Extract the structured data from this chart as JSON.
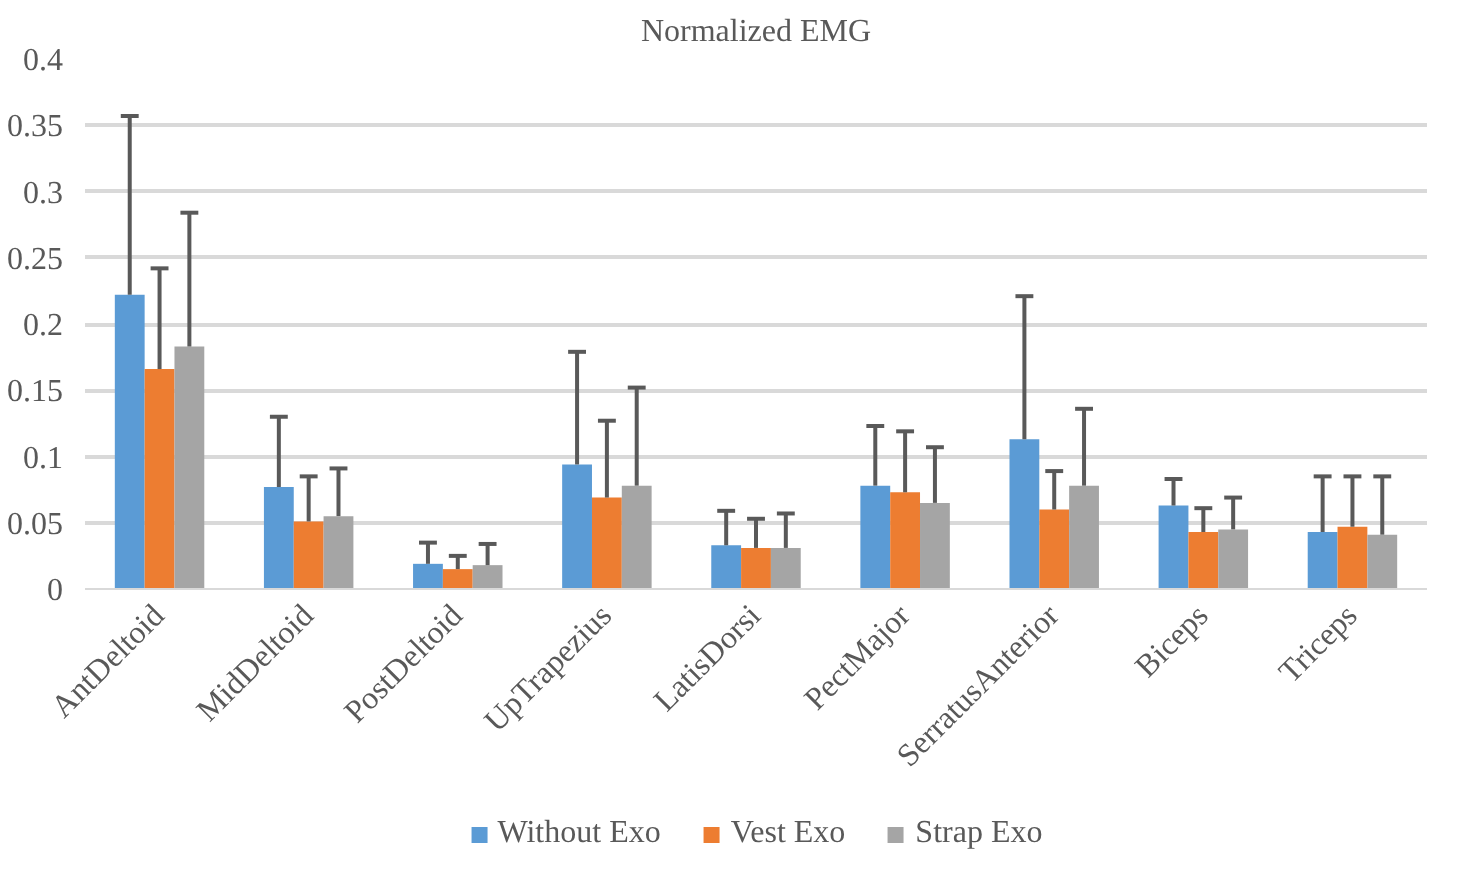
{
  "chart_data": {
    "type": "bar",
    "title": "Normalized EMG",
    "categories": [
      "AntDeltoid",
      "MidDeltoid",
      "PostDeltoid",
      "UpTrapezius",
      "LatisDorsi",
      "PectMajor",
      "SerratusAnterior",
      "Biceps",
      "Triceps"
    ],
    "series": [
      {
        "name": "Without Exo",
        "color": "#5b9bd5",
        "values": [
          0.222,
          0.077,
          0.019,
          0.094,
          0.033,
          0.078,
          0.113,
          0.063,
          0.043
        ],
        "errors": [
          [
            0.222,
            0.357
          ],
          [
            0.077,
            0.13
          ],
          [
            0.019,
            0.035
          ],
          [
            0.094,
            0.179
          ],
          [
            0.033,
            0.059
          ],
          [
            0.078,
            0.123
          ],
          [
            0.113,
            0.221
          ],
          [
            0.063,
            0.083
          ],
          [
            0.043,
            0.085
          ]
        ]
      },
      {
        "name": "Vest Exo",
        "color": "#ed7d31",
        "values": [
          0.166,
          0.051,
          0.015,
          0.069,
          0.031,
          0.073,
          0.06,
          0.043,
          0.047
        ],
        "errors": [
          [
            0.166,
            0.242
          ],
          [
            0.051,
            0.085
          ],
          [
            0.015,
            0.025
          ],
          [
            0.069,
            0.127
          ],
          [
            0.031,
            0.053
          ],
          [
            0.073,
            0.119
          ],
          [
            0.06,
            0.089
          ],
          [
            0.043,
            0.061
          ],
          [
            0.047,
            0.085
          ]
        ]
      },
      {
        "name": "Strap Exo",
        "color": "#a5a5a5",
        "values": [
          0.183,
          0.055,
          0.018,
          0.078,
          0.031,
          0.065,
          0.078,
          0.045,
          0.041
        ],
        "errors": [
          [
            0.183,
            0.284
          ],
          [
            0.055,
            0.091
          ],
          [
            0.018,
            0.034
          ],
          [
            0.078,
            0.152
          ],
          [
            0.031,
            0.057
          ],
          [
            0.065,
            0.107
          ],
          [
            0.078,
            0.136
          ],
          [
            0.045,
            0.069
          ],
          [
            0.041,
            0.085
          ]
        ]
      }
    ],
    "ylim": [
      0,
      0.4
    ],
    "yticks": [
      0,
      0.05,
      0.1,
      0.15,
      0.2,
      0.25,
      0.3,
      0.35,
      0.4
    ],
    "grid": "y",
    "legend": "bottom"
  }
}
